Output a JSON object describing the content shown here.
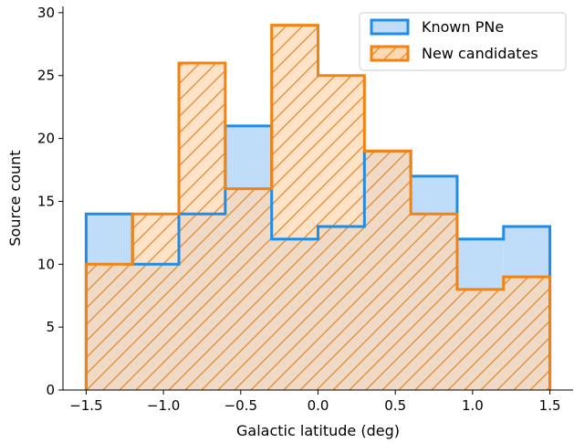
{
  "chart_data": {
    "type": "bar",
    "title": "",
    "xlabel": "Galactic latitude (deg)",
    "ylabel": "Source count",
    "bin_edges": [
      -1.5,
      -1.2,
      -0.9,
      -0.6,
      -0.3,
      0.0,
      0.3,
      0.6,
      0.9,
      1.2,
      1.5
    ],
    "series": [
      {
        "name": "Known PNe",
        "values": [
          14,
          10,
          14,
          21,
          12,
          13,
          19,
          17,
          12,
          13
        ],
        "color": "#1f8ce8",
        "fill": "#bfdcf8",
        "style": "step-filled"
      },
      {
        "name": "New candidates",
        "values": [
          10,
          14,
          26,
          16,
          29,
          25,
          19,
          14,
          8,
          9
        ],
        "color": "#f5820f",
        "fill": "#fdd9b5",
        "hatch": "diagonal",
        "style": "step-filled-hatched"
      }
    ],
    "xlim": [
      -1.65,
      1.65
    ],
    "ylim": [
      0,
      30.5
    ],
    "xticks": [
      "−1.5",
      "−1.0",
      "−0.5",
      "0.0",
      "0.5",
      "1.0",
      "1.5"
    ],
    "xtick_values": [
      -1.5,
      -1.0,
      -0.5,
      0.0,
      0.5,
      1.0,
      1.5
    ],
    "yticks": [
      "0",
      "5",
      "10",
      "15",
      "20",
      "25",
      "30"
    ],
    "ytick_values": [
      0,
      5,
      10,
      15,
      20,
      25,
      30
    ],
    "legend": {
      "position": "top-right",
      "entries": [
        "Known PNe",
        "New candidates"
      ]
    },
    "grid": false
  }
}
